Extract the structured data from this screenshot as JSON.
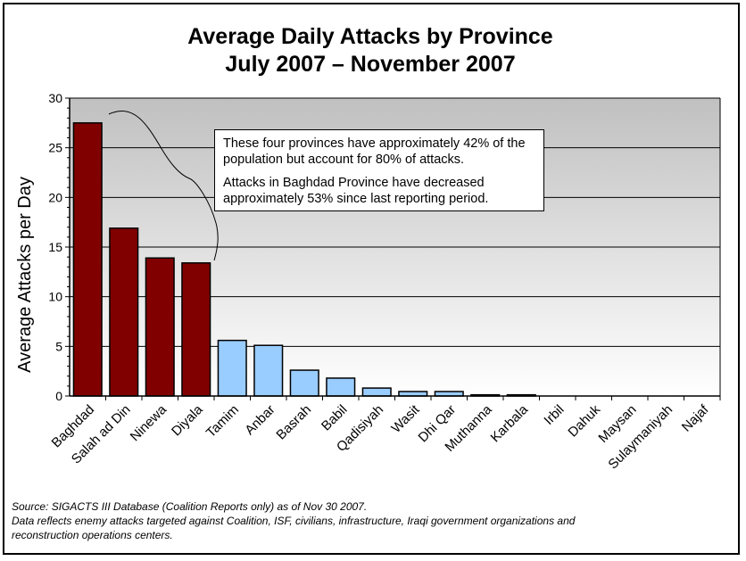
{
  "title": {
    "line1": "Average Daily Attacks by Province",
    "line2": "July 2007 – November 2007"
  },
  "callout": {
    "para1": "These four provinces have approximately 42% of the population but account for 80% of attacks.",
    "para2": "Attacks in Baghdad Province have decreased approximately 53% since last reporting period."
  },
  "source": {
    "line1": "Source:  SIGACTS III Database (Coalition Reports only) as of Nov 30 2007.",
    "line2": "Data reflects enemy attacks targeted against Coalition, ISF, civilians, infrastructure, Iraqi government organizations and",
    "line3": "reconstruction operations centers."
  },
  "chart_data": {
    "type": "bar",
    "title": "Average Daily Attacks by Province July 2007 – November 2007",
    "ylabel": "Average Attacks per Day",
    "xlabel": "",
    "ylim": [
      0,
      30
    ],
    "yticks": [
      0,
      5,
      10,
      15,
      20,
      25,
      30
    ],
    "grid": true,
    "categories": [
      "Baghdad",
      "Salah ad Din",
      "Ninewa",
      "Diyala",
      "Tamim",
      "Anbar",
      "Basrah",
      "Babil",
      "Qadisiyah",
      "Wasit",
      "Dhi Qar",
      "Muthanna",
      "Karbala",
      "Irbil",
      "Dahuk",
      "Maysan",
      "Sulaymaniyah",
      "Najaf"
    ],
    "values": [
      27.5,
      16.9,
      13.9,
      13.4,
      5.6,
      5.1,
      2.6,
      1.8,
      0.8,
      0.45,
      0.45,
      0.12,
      0.12,
      0,
      0,
      0,
      0,
      0
    ],
    "highlight_count": 4,
    "colors": {
      "highlight": "#800000",
      "normal": "#99ccff",
      "grid": "#000000"
    }
  }
}
